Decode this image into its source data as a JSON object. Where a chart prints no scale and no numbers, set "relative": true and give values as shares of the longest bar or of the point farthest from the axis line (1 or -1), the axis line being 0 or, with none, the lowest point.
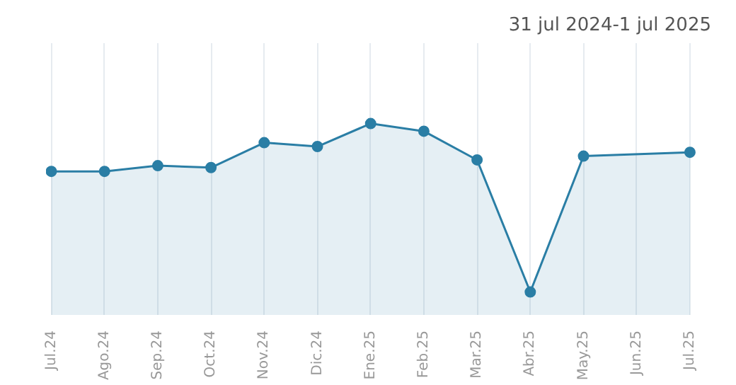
{
  "chart_data": {
    "type": "area",
    "title": "31 jul 2024-1 jul 2025",
    "relative": true,
    "categories": [
      "Jul.24",
      "Ago.24",
      "Sep.24",
      "Oct.24",
      "Nov.24",
      "Dic.24",
      "Ene.25",
      "Feb.25",
      "Mar.25",
      "Abr.25",
      "May.25",
      "Jun.25",
      "Jul.25"
    ],
    "series": [
      {
        "color": "#2a7ea5",
        "values": [
          0.75,
          0.75,
          0.78,
          0.77,
          0.9,
          0.88,
          1,
          0.96,
          0.81,
          0.12,
          0.83,
          null,
          0.85
        ]
      }
    ],
    "grid": "x",
    "marker": "circle",
    "line_style": "solid"
  }
}
